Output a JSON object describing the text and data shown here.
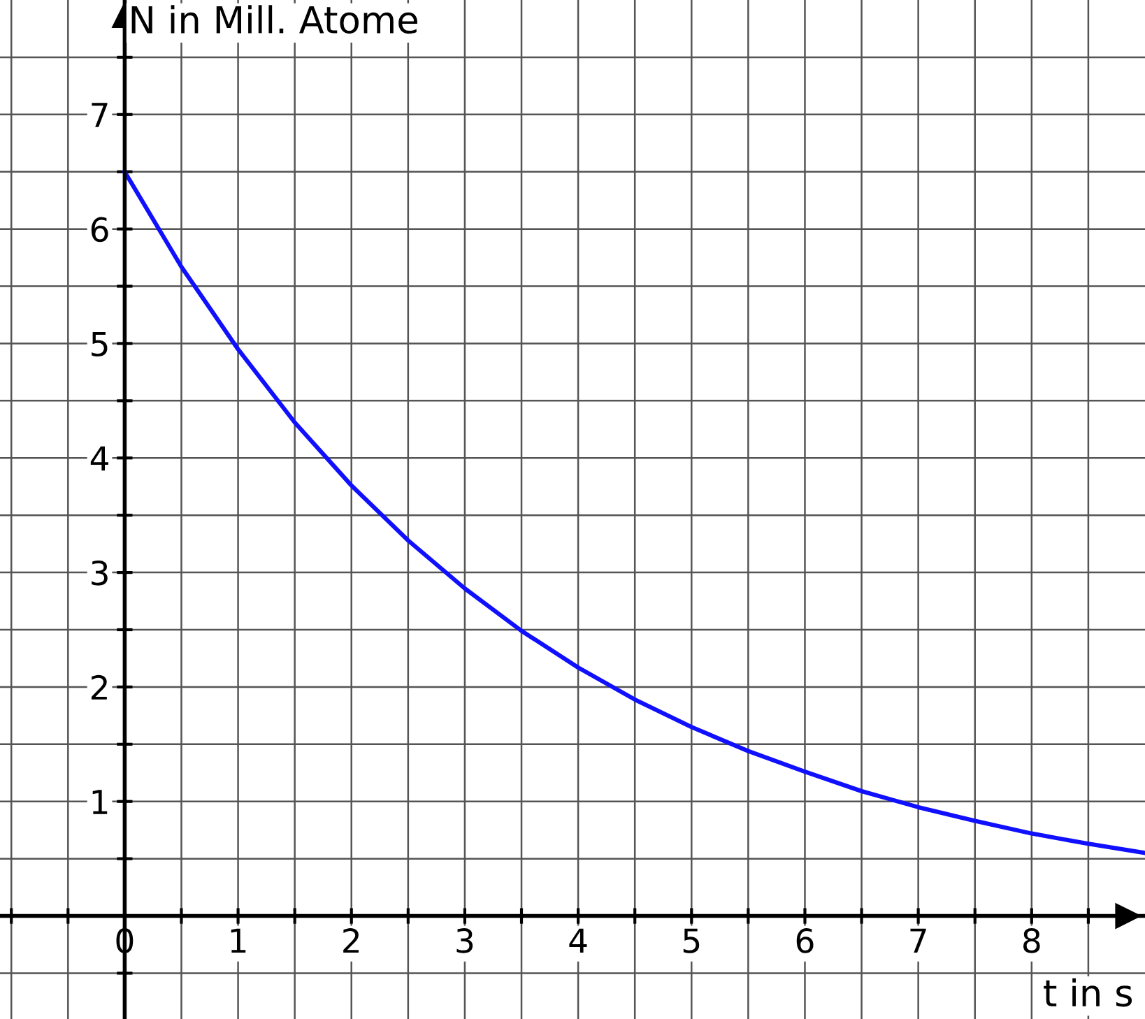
{
  "chart_data": {
    "type": "line",
    "xlabel": "t in s",
    "ylabel": "N in Mill. Atome",
    "x": [
      0,
      0.5,
      1,
      1.5,
      2,
      2.5,
      3,
      3.5,
      4,
      4.5,
      5,
      5.5,
      6,
      6.5,
      7,
      7.5,
      8,
      8.5,
      9
    ],
    "series": [
      {
        "color": "#1010ff",
        "values": [
          6.5,
          5.67,
          4.95,
          4.31,
          3.76,
          3.28,
          2.86,
          2.49,
          2.17,
          1.89,
          1.65,
          1.44,
          1.26,
          1.09,
          0.95,
          0.83,
          0.72,
          0.63,
          0.55
        ]
      }
    ],
    "xlim": [
      -1.1,
      9.0
    ],
    "ylim": [
      -0.9,
      8.0
    ],
    "xticks": [
      {
        "value": -1,
        "label": null
      },
      {
        "value": -0.5,
        "label": null
      },
      0,
      {
        "value": 0.5,
        "label": null
      },
      1,
      {
        "value": 1.5,
        "label": null
      },
      2,
      {
        "value": 2.5,
        "label": null
      },
      3,
      {
        "value": 3.5,
        "label": null
      },
      4,
      {
        "value": 4.5,
        "label": null
      },
      5,
      {
        "value": 5.5,
        "label": null
      },
      6,
      {
        "value": 6.5,
        "label": null
      },
      7,
      {
        "value": 7.5,
        "label": null
      },
      8,
      {
        "value": 8.5,
        "label": null
      }
    ],
    "yticks": [
      {
        "value": -0.5,
        "label": null
      },
      {
        "value": 0.5,
        "label": null
      },
      1,
      {
        "value": 1.5,
        "label": null
      },
      2,
      {
        "value": 2.5,
        "label": null
      },
      3,
      {
        "value": 3.5,
        "label": null
      },
      4,
      {
        "value": 4.5,
        "label": null
      },
      5,
      {
        "value": 5.5,
        "label": null
      },
      6,
      {
        "value": 6.5,
        "label": null
      },
      7,
      {
        "value": 7.5,
        "label": null
      }
    ],
    "grid": true,
    "marker": "none",
    "line_style": "solid",
    "legend": false
  }
}
